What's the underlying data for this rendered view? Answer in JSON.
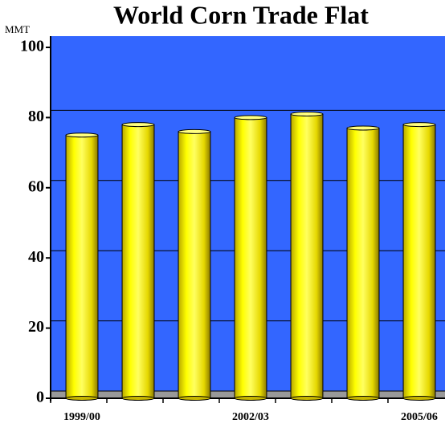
{
  "chart_data": {
    "type": "bar",
    "title": "World Corn Trade Flat",
    "y_label": "MMT",
    "categories": [
      "1999/00",
      null,
      null,
      "2002/03",
      null,
      null,
      "2005/06"
    ],
    "values": [
      75,
      78,
      76,
      80,
      81,
      77,
      78
    ],
    "color": "#ffff00",
    "background": "#3366ff",
    "ylim": [
      0,
      100
    ],
    "yticks": [
      0,
      20,
      40,
      60,
      80,
      100
    ],
    "grid": true
  }
}
